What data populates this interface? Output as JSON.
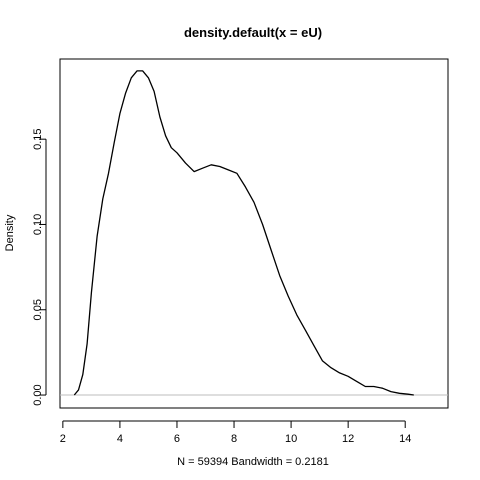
{
  "chart_data": {
    "type": "line",
    "title": "density.default(x = eU)",
    "xlabel": "N = 59394   Bandwidth = 0.2181",
    "ylabel": "Density",
    "xlim": [
      1.9,
      15.5
    ],
    "ylim": [
      -0.0076,
      0.197
    ],
    "xticks": [
      2,
      4,
      6,
      8,
      10,
      12,
      14
    ],
    "xtick_labels": [
      "2",
      "4",
      "6",
      "8",
      "10",
      "12",
      "14"
    ],
    "yticks": [
      0.0,
      0.05,
      0.1,
      0.15
    ],
    "ytick_labels": [
      "0.00",
      "0.05",
      "0.10",
      "0.15"
    ],
    "baseline": 0,
    "grid": false,
    "legend": "none",
    "colors": {
      "line": "#000000",
      "baseline": "#bebebe",
      "axes": "#000000",
      "background": "#ffffff"
    },
    "series": [
      {
        "x": [
          2.4,
          2.55,
          2.7,
          2.85,
          3.0,
          3.2,
          3.4,
          3.6,
          3.8,
          4.0,
          4.2,
          4.4,
          4.6,
          4.8,
          5.0,
          5.2,
          5.4,
          5.6,
          5.8,
          6.0,
          6.3,
          6.6,
          6.9,
          7.2,
          7.5,
          7.8,
          8.1,
          8.4,
          8.7,
          9.0,
          9.3,
          9.6,
          9.9,
          10.2,
          10.5,
          10.8,
          11.1,
          11.4,
          11.7,
          12.0,
          12.3,
          12.6,
          12.9,
          13.2,
          13.5,
          13.8,
          14.1,
          14.3
        ],
        "y": [
          0.0,
          0.003,
          0.012,
          0.03,
          0.06,
          0.093,
          0.115,
          0.13,
          0.148,
          0.165,
          0.177,
          0.186,
          0.19,
          0.19,
          0.186,
          0.178,
          0.163,
          0.152,
          0.145,
          0.142,
          0.136,
          0.131,
          0.133,
          0.135,
          0.134,
          0.132,
          0.13,
          0.122,
          0.113,
          0.1,
          0.085,
          0.07,
          0.058,
          0.047,
          0.038,
          0.029,
          0.02,
          0.016,
          0.013,
          0.011,
          0.008,
          0.005,
          0.005,
          0.004,
          0.002,
          0.001,
          0.0005,
          0.0
        ]
      }
    ]
  }
}
